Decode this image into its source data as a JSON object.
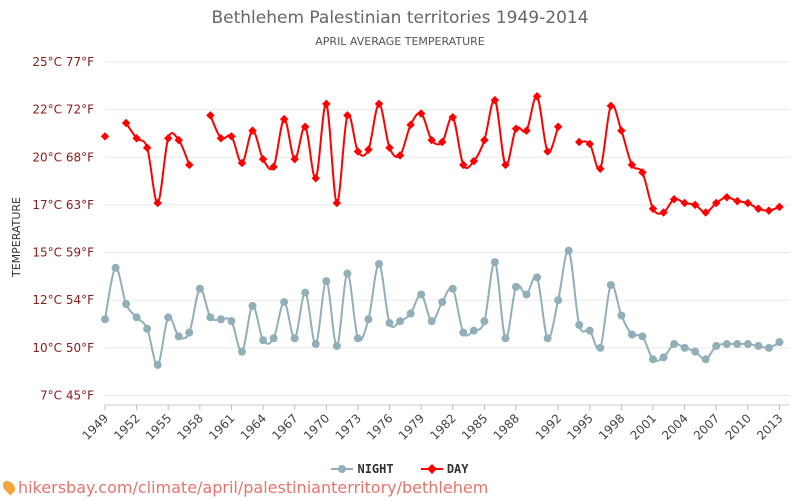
{
  "title": "Bethlehem Palestinian territories 1949-2014",
  "subtitle": "APRIL AVERAGE TEMPERATURE",
  "source_text": "hikersbay.com/climate/april/palestinianterritory/bethlehem",
  "legend": {
    "night": "NIGHT",
    "day": "DAY"
  },
  "colors": {
    "night": "#90afb9",
    "day": "#ff0000",
    "grid": "#e8e8e8",
    "tick_text": "#8b1a1a",
    "x_tick_text": "#444444"
  },
  "icons": {
    "source": "map-pin-icon"
  },
  "chart_data": {
    "type": "line",
    "ylabel": "TEMPERATURE",
    "ylim": [
      7,
      25
    ],
    "y_ticks": [
      {
        "value": 7.5,
        "label": "7°C 45°F"
      },
      {
        "value": 10,
        "label": "10°C 50°F"
      },
      {
        "value": 12.5,
        "label": "12°C 54°F"
      },
      {
        "value": 15,
        "label": "15°C 59°F"
      },
      {
        "value": 17.5,
        "label": "17°C 63°F"
      },
      {
        "value": 20,
        "label": "20°C 68°F"
      },
      {
        "value": 22.5,
        "label": "22°C 72°F"
      },
      {
        "value": 25,
        "label": "25°C 77°F"
      }
    ],
    "x_tick_labels": [
      "1949",
      "1952",
      "1955",
      "1958",
      "1961",
      "1964",
      "1967",
      "1970",
      "1973",
      "1976",
      "1979",
      "1982",
      "1985",
      "1988",
      "1992",
      "1995",
      "1998",
      "2001",
      "2004",
      "2007",
      "2010",
      "2013"
    ],
    "x": [
      1949,
      1950,
      1951,
      1952,
      1953,
      1954,
      1955,
      1956,
      1957,
      1958,
      1959,
      1960,
      1961,
      1962,
      1963,
      1964,
      1965,
      1966,
      1967,
      1968,
      1969,
      1970,
      1971,
      1972,
      1973,
      1974,
      1975,
      1976,
      1977,
      1978,
      1979,
      1980,
      1981,
      1982,
      1983,
      1984,
      1985,
      1986,
      1987,
      1988,
      1989,
      1990,
      1991,
      1992,
      1993,
      1994,
      1995,
      1996,
      1997,
      1998,
      1999,
      2000,
      2001,
      2002,
      2003,
      2004,
      2005,
      2006,
      2007,
      2008,
      2009,
      2010,
      2011,
      2012,
      2013,
      2014
    ],
    "series": [
      {
        "name": "DAY",
        "values": [
          21.1,
          null,
          21.8,
          21.0,
          20.5,
          17.6,
          21.0,
          20.9,
          19.6,
          null,
          22.2,
          21.0,
          21.1,
          19.7,
          21.4,
          19.9,
          19.5,
          22.0,
          19.9,
          21.6,
          18.9,
          22.8,
          17.6,
          22.2,
          20.3,
          20.4,
          22.8,
          20.5,
          20.1,
          21.7,
          22.3,
          20.9,
          20.8,
          22.1,
          19.6,
          19.8,
          20.9,
          23.0,
          19.6,
          21.5,
          21.4,
          23.2,
          20.3,
          21.6,
          null,
          20.8,
          20.7,
          19.4,
          22.7,
          21.4,
          19.6,
          19.2,
          17.3,
          17.1,
          17.8,
          17.6,
          17.5,
          17.1,
          17.6,
          17.9,
          17.7,
          17.6,
          17.3,
          17.2,
          17.4,
          null
        ],
        "color": "#ff0000"
      },
      {
        "name": "NIGHT",
        "values": [
          11.5,
          14.2,
          12.3,
          11.6,
          11.0,
          9.1,
          11.6,
          10.6,
          10.8,
          13.1,
          11.6,
          11.5,
          11.4,
          9.8,
          12.2,
          10.4,
          10.5,
          12.4,
          10.5,
          12.9,
          10.2,
          13.5,
          10.1,
          13.9,
          10.5,
          11.5,
          14.4,
          11.3,
          11.4,
          11.8,
          12.8,
          11.4,
          12.4,
          13.1,
          10.8,
          10.9,
          11.4,
          14.5,
          10.5,
          13.2,
          12.8,
          13.7,
          10.5,
          12.5,
          15.1,
          11.2,
          10.9,
          10.0,
          13.3,
          11.7,
          10.7,
          10.6,
          9.4,
          9.5,
          10.2,
          10.0,
          9.8,
          9.4,
          10.1,
          10.2,
          10.2,
          10.2,
          10.1,
          10.0,
          10.3,
          null
        ],
        "color": "#90afb9"
      }
    ]
  }
}
